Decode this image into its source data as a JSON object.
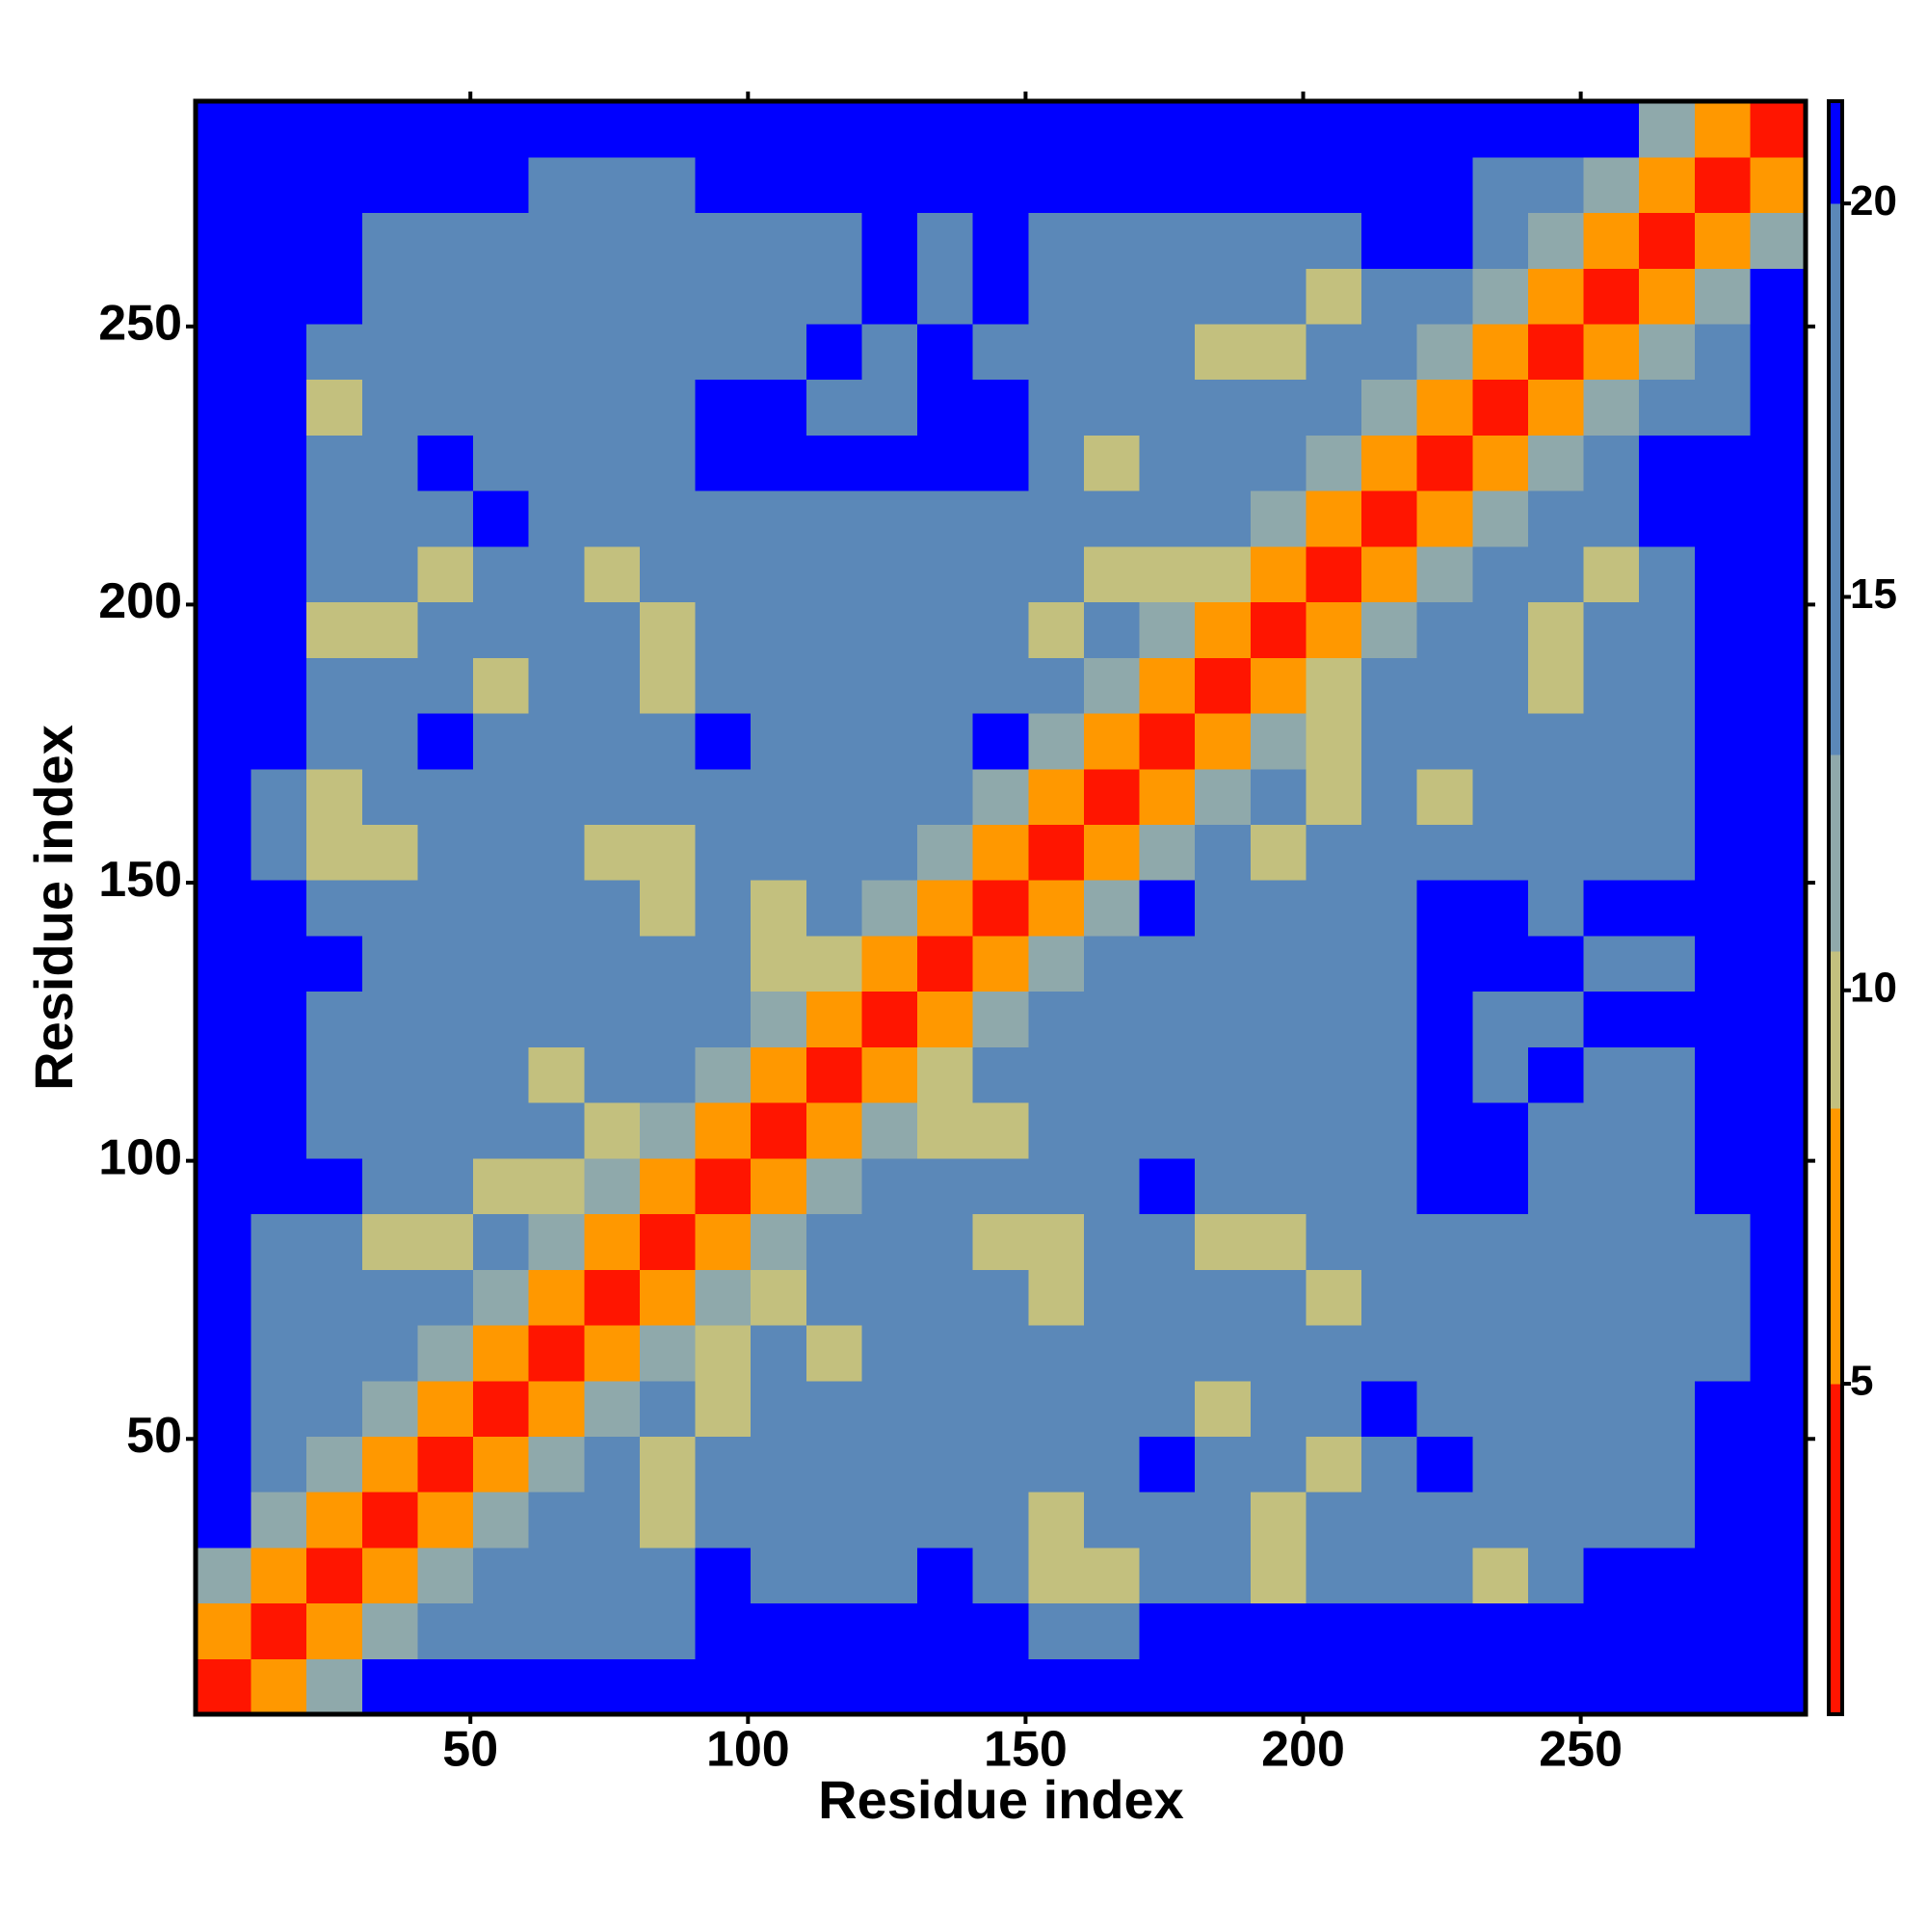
{
  "chart_data": {
    "type": "heatmap",
    "x_label": "Residue index",
    "y_label": "Residue index",
    "xlim": [
      0.5,
      290.5
    ],
    "ylim": [
      0.5,
      290.5
    ],
    "xticks": [
      50,
      100,
      150,
      200,
      250
    ],
    "yticks": [
      50,
      100,
      150,
      200,
      250
    ],
    "x_bins": [
      0.5,
      10.5,
      20.5,
      30.5,
      40.5,
      50.5,
      60.5,
      70.5,
      80.5,
      90.5,
      100.5,
      110.5,
      120.5,
      130.5,
      140.5,
      150.5,
      160.5,
      170.5,
      180.5,
      190.5,
      200.5,
      210.5,
      220.5,
      230.5,
      240.5,
      250.5,
      260.5,
      270.5,
      280.5,
      290.5
    ],
    "y_bins": [
      0.5,
      10.5,
      20.5,
      30.5,
      40.5,
      50.5,
      60.5,
      70.5,
      80.5,
      90.5,
      100.5,
      110.5,
      120.5,
      130.5,
      140.5,
      150.5,
      160.5,
      170.5,
      180.5,
      190.5,
      200.5,
      210.5,
      220.5,
      230.5,
      240.5,
      250.5,
      260.5,
      270.5,
      280.5,
      290.5
    ],
    "z": [
      [
        3,
        8,
        12,
        21,
        21,
        21,
        21,
        21,
        21,
        21,
        21,
        21,
        21,
        21,
        21,
        21,
        21,
        21,
        21,
        21,
        21,
        21,
        21,
        21,
        21,
        21,
        21,
        21,
        21
      ],
      [
        8,
        3,
        8,
        12,
        17,
        17,
        17,
        17,
        17,
        21,
        21,
        21,
        21,
        21,
        21,
        17,
        17,
        21,
        21,
        21,
        21,
        21,
        21,
        21,
        21,
        21,
        21,
        21,
        21
      ],
      [
        12,
        8,
        3,
        8,
        12,
        17,
        17,
        17,
        17,
        21,
        17,
        17,
        17,
        21,
        17,
        10,
        10,
        17,
        17,
        10,
        17,
        17,
        17,
        10,
        17,
        21,
        21,
        21,
        21
      ],
      [
        21,
        12,
        8,
        3,
        8,
        12,
        17,
        17,
        10,
        17,
        17,
        17,
        17,
        17,
        17,
        10,
        17,
        17,
        17,
        10,
        17,
        17,
        17,
        17,
        17,
        17,
        17,
        21,
        21
      ],
      [
        21,
        17,
        12,
        8,
        3,
        8,
        12,
        17,
        10,
        17,
        17,
        17,
        17,
        17,
        17,
        17,
        17,
        21,
        17,
        17,
        10,
        17,
        21,
        17,
        17,
        17,
        17,
        21,
        21
      ],
      [
        21,
        17,
        17,
        12,
        8,
        3,
        8,
        12,
        17,
        10,
        17,
        17,
        17,
        17,
        17,
        17,
        17,
        17,
        10,
        17,
        17,
        21,
        17,
        17,
        17,
        17,
        17,
        21,
        21
      ],
      [
        21,
        17,
        17,
        17,
        12,
        8,
        3,
        8,
        12,
        10,
        17,
        10,
        17,
        17,
        17,
        17,
        17,
        17,
        17,
        17,
        17,
        17,
        17,
        17,
        17,
        17,
        17,
        17,
        21
      ],
      [
        21,
        17,
        17,
        17,
        17,
        12,
        8,
        3,
        8,
        12,
        10,
        17,
        17,
        17,
        17,
        10,
        17,
        17,
        17,
        17,
        10,
        17,
        17,
        17,
        17,
        17,
        17,
        17,
        21
      ],
      [
        21,
        17,
        17,
        10,
        10,
        17,
        12,
        8,
        3,
        8,
        12,
        17,
        17,
        17,
        10,
        10,
        17,
        17,
        10,
        10,
        17,
        17,
        17,
        17,
        17,
        17,
        17,
        17,
        21
      ],
      [
        21,
        21,
        21,
        17,
        17,
        10,
        10,
        12,
        8,
        3,
        8,
        12,
        17,
        17,
        17,
        17,
        17,
        21,
        17,
        17,
        17,
        17,
        21,
        21,
        17,
        17,
        17,
        21,
        21
      ],
      [
        21,
        21,
        17,
        17,
        17,
        17,
        17,
        10,
        12,
        8,
        3,
        8,
        12,
        10,
        10,
        17,
        17,
        17,
        17,
        17,
        17,
        17,
        21,
        21,
        17,
        17,
        17,
        21,
        21
      ],
      [
        21,
        21,
        17,
        17,
        17,
        17,
        10,
        17,
        17,
        12,
        8,
        3,
        8,
        10,
        17,
        17,
        17,
        17,
        17,
        17,
        17,
        17,
        21,
        17,
        21,
        17,
        17,
        21,
        21
      ],
      [
        21,
        21,
        17,
        17,
        17,
        17,
        17,
        17,
        17,
        17,
        12,
        8,
        3,
        8,
        12,
        17,
        17,
        17,
        17,
        17,
        17,
        17,
        21,
        17,
        17,
        21,
        21,
        21,
        21
      ],
      [
        21,
        21,
        21,
        17,
        17,
        17,
        17,
        17,
        17,
        17,
        10,
        10,
        8,
        3,
        8,
        12,
        17,
        17,
        17,
        17,
        17,
        17,
        21,
        21,
        21,
        17,
        17,
        21,
        21
      ],
      [
        21,
        21,
        17,
        17,
        17,
        17,
        17,
        17,
        10,
        17,
        10,
        17,
        12,
        8,
        3,
        8,
        12,
        21,
        17,
        17,
        17,
        17,
        21,
        21,
        17,
        21,
        21,
        21,
        21
      ],
      [
        21,
        17,
        10,
        10,
        17,
        17,
        17,
        10,
        10,
        17,
        17,
        17,
        17,
        12,
        8,
        3,
        8,
        12,
        17,
        10,
        17,
        17,
        17,
        17,
        17,
        17,
        17,
        21,
        21
      ],
      [
        21,
        17,
        10,
        17,
        17,
        17,
        17,
        17,
        17,
        17,
        17,
        17,
        17,
        17,
        12,
        8,
        3,
        8,
        12,
        17,
        10,
        17,
        10,
        17,
        17,
        17,
        17,
        21,
        21
      ],
      [
        21,
        21,
        17,
        17,
        21,
        17,
        17,
        17,
        17,
        21,
        17,
        17,
        17,
        17,
        21,
        12,
        8,
        3,
        8,
        12,
        10,
        17,
        17,
        17,
        17,
        17,
        17,
        21,
        21
      ],
      [
        21,
        21,
        17,
        17,
        17,
        10,
        17,
        17,
        10,
        17,
        17,
        17,
        17,
        17,
        17,
        17,
        12,
        8,
        3,
        8,
        10,
        17,
        17,
        17,
        10,
        17,
        17,
        21,
        21
      ],
      [
        21,
        21,
        10,
        10,
        17,
        17,
        17,
        17,
        10,
        17,
        17,
        17,
        17,
        17,
        17,
        10,
        17,
        12,
        8,
        3,
        8,
        12,
        17,
        17,
        10,
        17,
        17,
        21,
        21
      ],
      [
        21,
        21,
        17,
        17,
        10,
        17,
        17,
        10,
        17,
        17,
        17,
        17,
        17,
        17,
        17,
        17,
        10,
        10,
        10,
        8,
        3,
        8,
        12,
        17,
        17,
        10,
        17,
        21,
        21
      ],
      [
        21,
        21,
        17,
        17,
        17,
        21,
        17,
        17,
        17,
        17,
        17,
        17,
        17,
        17,
        17,
        17,
        17,
        17,
        17,
        12,
        8,
        3,
        8,
        12,
        17,
        17,
        21,
        21,
        21
      ],
      [
        21,
        21,
        17,
        17,
        21,
        17,
        17,
        17,
        17,
        21,
        21,
        21,
        21,
        21,
        21,
        17,
        10,
        17,
        17,
        17,
        12,
        8,
        3,
        8,
        12,
        17,
        21,
        21,
        21
      ],
      [
        21,
        21,
        10,
        17,
        17,
        17,
        17,
        17,
        17,
        21,
        21,
        17,
        17,
        21,
        21,
        17,
        17,
        17,
        17,
        17,
        17,
        12,
        8,
        3,
        8,
        12,
        17,
        17,
        21
      ],
      [
        21,
        21,
        17,
        17,
        17,
        17,
        17,
        17,
        17,
        17,
        17,
        21,
        17,
        21,
        17,
        17,
        17,
        17,
        10,
        10,
        17,
        17,
        12,
        8,
        3,
        8,
        12,
        17,
        21
      ],
      [
        21,
        21,
        21,
        17,
        17,
        17,
        17,
        17,
        17,
        17,
        17,
        17,
        21,
        17,
        21,
        17,
        17,
        17,
        17,
        17,
        10,
        17,
        17,
        12,
        8,
        3,
        8,
        12,
        21
      ],
      [
        21,
        21,
        21,
        17,
        17,
        17,
        17,
        17,
        17,
        17,
        17,
        17,
        21,
        17,
        21,
        17,
        17,
        17,
        17,
        17,
        17,
        21,
        21,
        17,
        12,
        8,
        3,
        8,
        12
      ],
      [
        21,
        21,
        21,
        21,
        21,
        21,
        17,
        17,
        17,
        21,
        21,
        21,
        21,
        21,
        21,
        21,
        21,
        21,
        21,
        21,
        21,
        21,
        21,
        17,
        17,
        12,
        8,
        3,
        8
      ],
      [
        21,
        21,
        21,
        21,
        21,
        21,
        21,
        21,
        21,
        21,
        21,
        21,
        21,
        21,
        21,
        21,
        21,
        21,
        21,
        21,
        21,
        21,
        21,
        21,
        21,
        21,
        12,
        8,
        3
      ]
    ],
    "clim": [
      0.8,
      21.3
    ],
    "cticks": [
      5,
      10,
      15,
      20
    ],
    "color_levels": [
      {
        "max": 5,
        "color": "#ff1500"
      },
      {
        "max": 8.5,
        "color": "#ff9800"
      },
      {
        "max": 10.5,
        "color": "#c3c07e"
      },
      {
        "max": 13,
        "color": "#8fa9ab"
      },
      {
        "max": 20,
        "color": "#5b88b8"
      },
      {
        "color": "#0000ff"
      }
    ]
  }
}
